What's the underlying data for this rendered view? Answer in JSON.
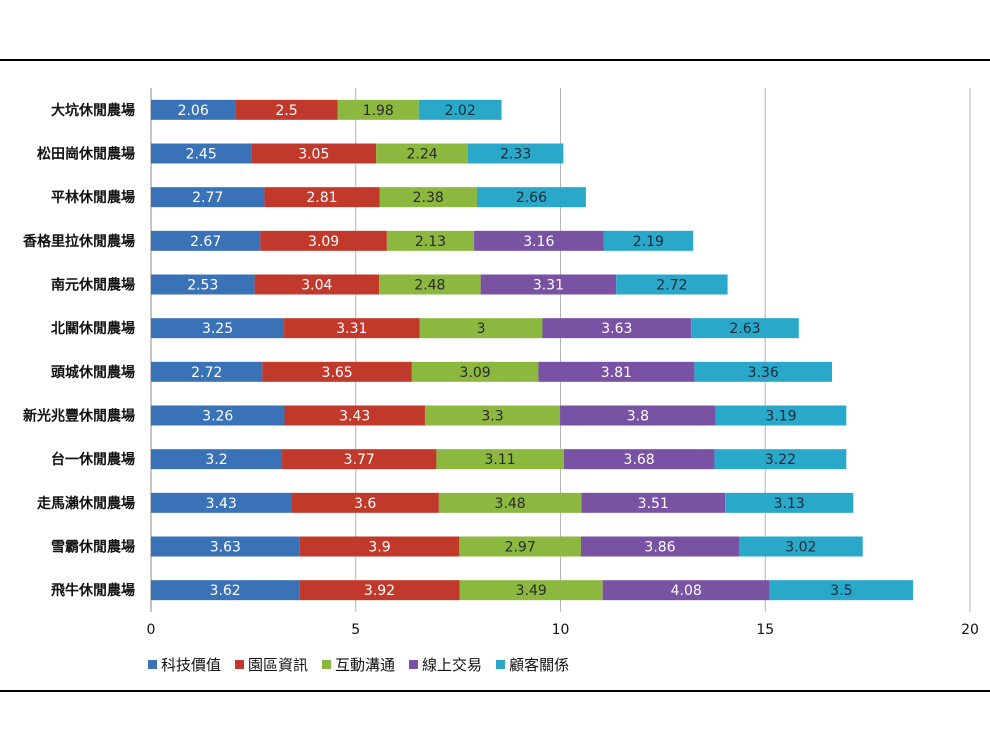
{
  "chart_data": {
    "type": "bar",
    "orientation": "horizontal",
    "stacked": true,
    "categories": [
      "大坑休閒農場",
      "松田崗休閒農場",
      "平林休閒農場",
      "香格里拉休閒農場",
      "南元休閒農場",
      "北關休閒農場",
      "頭城休閒農場",
      "新光兆豐休閒農場",
      "台一休閒農場",
      "走馬瀨休閒農場",
      "雪霸休閒農場",
      "飛牛休閒農場"
    ],
    "series": [
      {
        "name": "科技價值",
        "color": "#3a72b8",
        "label_color": "#ffffff",
        "values": [
          2.06,
          2.45,
          2.77,
          2.67,
          2.53,
          3.25,
          2.72,
          3.26,
          3.2,
          3.43,
          3.63,
          3.62
        ],
        "labels": [
          "2.06",
          "2.45",
          "2.77",
          "2.67",
          "2.53",
          "3.25",
          "2.72",
          "3.26",
          "3.2",
          "3.43",
          "3.63",
          "3.62"
        ]
      },
      {
        "name": "園區資訊",
        "color": "#c0392b",
        "label_color": "#ffffff",
        "values": [
          2.5,
          3.05,
          2.81,
          3.09,
          3.04,
          3.31,
          3.65,
          3.43,
          3.77,
          3.6,
          3.9,
          3.92
        ],
        "labels": [
          "2.5",
          "3.05",
          "2.81",
          "3.09",
          "3.04",
          "3.31",
          "3.65",
          "3.43",
          "3.77",
          "3.6",
          "3.9",
          "3.92"
        ]
      },
      {
        "name": "互動溝通",
        "color": "#8cb83f",
        "label_color": "#2a2a2a",
        "values": [
          1.98,
          2.24,
          2.38,
          2.13,
          2.48,
          3,
          3.09,
          3.3,
          3.11,
          3.48,
          2.97,
          3.49
        ],
        "labels": [
          "1.98",
          "2.24",
          "2.38",
          "2.13",
          "2.48",
          "3",
          "3.09",
          "3.3",
          "3.11",
          "3.48",
          "2.97",
          "3.49"
        ]
      },
      {
        "name": "線上交易",
        "color": "#7a52a3",
        "label_color": "#ffffff",
        "values": [
          0,
          0,
          0,
          3.16,
          3.31,
          3.63,
          3.81,
          3.8,
          3.68,
          3.51,
          3.86,
          4.08
        ],
        "labels": [
          "",
          "",
          "",
          "3.16",
          "3.31",
          "3.63",
          "3.81",
          "3.8",
          "3.68",
          "3.51",
          "3.86",
          "4.08"
        ]
      },
      {
        "name": "顧客關係",
        "color": "#2aa8c9",
        "label_color": "#1a2a3a",
        "values": [
          2.02,
          2.33,
          2.66,
          2.19,
          2.72,
          2.63,
          3.36,
          3.19,
          3.22,
          3.13,
          3.02,
          3.5
        ],
        "labels": [
          "2.02",
          "2.33",
          "2.66",
          "2.19",
          "2.72",
          "2.63",
          "3.36",
          "3.19",
          "3.22",
          "3.13",
          "3.02",
          "3.5"
        ]
      }
    ],
    "xlim": [
      0,
      20
    ],
    "xticks": [
      "0",
      "5",
      "10",
      "15",
      "20"
    ],
    "grid": "vertical",
    "legend": "bottom"
  }
}
